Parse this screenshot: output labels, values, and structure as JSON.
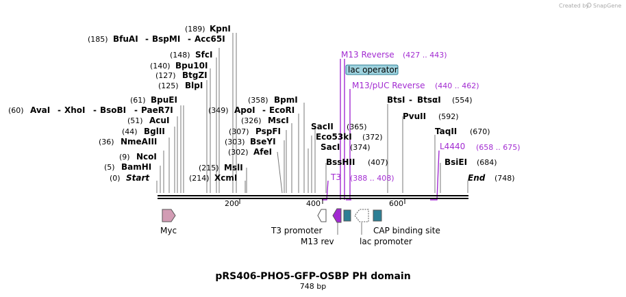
{
  "credit": {
    "prefix": "Created by",
    "brand": "SnapGene"
  },
  "title": "pRS406-PHO5-GFP-OSBP PH domain",
  "length_label": "748 bp",
  "ticks": [
    "200",
    "400",
    "600"
  ],
  "sites": {
    "kpni": {
      "pos": "(189)",
      "name": "KpnI"
    },
    "bfuai": {
      "pos": "(185)",
      "names": [
        "BfuAI",
        "BspMI",
        "Acc65I"
      ]
    },
    "sfci": {
      "pos": "(148)",
      "name": "SfcI"
    },
    "bpu10i": {
      "pos": "(140)",
      "name": "Bpu10I"
    },
    "btgzi": {
      "pos": "(127)",
      "name": "BtgZI"
    },
    "blpi": {
      "pos": "(125)",
      "name": "BlpI"
    },
    "bpuei": {
      "pos": "(61)",
      "name": "BpuEI"
    },
    "avai": {
      "pos": "(60)",
      "names": [
        "AvaI",
        "XhoI",
        "BsoBI",
        "PaeR7I"
      ]
    },
    "acui": {
      "pos": "(51)",
      "name": "AcuI"
    },
    "bglii": {
      "pos": "(44)",
      "name": "BglII"
    },
    "nmeaiii": {
      "pos": "(36)",
      "name": "NmeAIII"
    },
    "ncoi": {
      "pos": "(9)",
      "name": "NcoI"
    },
    "bamhi": {
      "pos": "(5)",
      "name": "BamHI"
    },
    "start": {
      "pos": "(0)",
      "name": "Start"
    },
    "bpmi": {
      "pos": "(358)",
      "name": "BpmI"
    },
    "apoi": {
      "pos": "(349)",
      "names": [
        "ApoI",
        "EcoRI"
      ]
    },
    "msci": {
      "pos": "(326)",
      "name": "MscI"
    },
    "pspfi": {
      "pos": "(307)",
      "name": "PspFI"
    },
    "bseyi": {
      "pos": "(303)",
      "name": "BseYI"
    },
    "afei": {
      "pos": "(302)",
      "name": "AfeI"
    },
    "msli": {
      "pos": "(215)",
      "name": "MslI"
    },
    "xcmi": {
      "pos": "(214)",
      "name": "XcmI"
    },
    "sacii": {
      "pos": "(365)",
      "name": "SacII"
    },
    "eco53ki": {
      "pos": "(372)",
      "name": "Eco53kI"
    },
    "saci": {
      "pos": "(374)",
      "name": "SacI"
    },
    "bsshii": {
      "pos": "(407)",
      "name": "BssHII"
    },
    "btsi": {
      "pos": "(554)",
      "names": [
        "BtsI",
        "BtsαI"
      ]
    },
    "pvuii": {
      "pos": "(592)",
      "name": "PvuII"
    },
    "taqii": {
      "pos": "(670)",
      "name": "TaqII"
    },
    "bsiei": {
      "pos": "(684)",
      "name": "BsiEI"
    },
    "end": {
      "pos": "(748)",
      "name": "End"
    }
  },
  "primers": {
    "m13rev": {
      "name": "M13 Reverse",
      "range": "(427 .. 443)"
    },
    "m13puc": {
      "name": "M13/pUC Reverse",
      "range": "(440 .. 462)"
    },
    "t3": {
      "name": "T3",
      "range": "(388 .. 408)"
    },
    "l4440": {
      "name": "L4440",
      "range": "(658 .. 675)"
    }
  },
  "lac_operator": "lac operator",
  "features": {
    "myc": "Myc",
    "t3_promoter": "T3 promoter",
    "m13_rev": "M13 rev",
    "lac_promoter": "lac promoter",
    "cap": "CAP binding site"
  },
  "colors": {
    "primer": "#a22bd1",
    "myc": "#d29cb4",
    "m13rev": "#a22bd1",
    "lac_operator": "#2c7f95",
    "cap": "#2c7f95",
    "lac_operator_label_bg": "#9fd3df"
  }
}
